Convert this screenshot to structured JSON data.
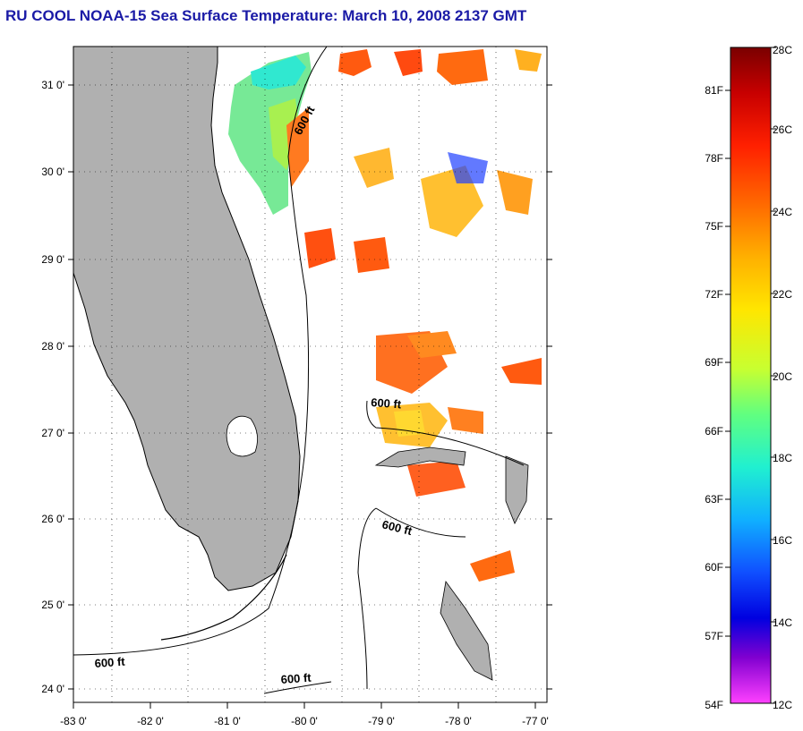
{
  "title": "RU COOL  NOAA-15  Sea Surface Temperature:  March 10, 2008 2137 GMT",
  "map": {
    "lon_ticks": [
      "-83 0'",
      "-82 0'",
      "-81 0'",
      "-80 0'",
      "-79 0'",
      "-78 0'",
      "-77 0'"
    ],
    "lat_ticks": [
      "31 0'",
      "30 0'",
      "29 0'",
      "28 0'",
      "27 0'",
      "26 0'",
      "25 0'",
      "24 0'"
    ],
    "contour_labels": [
      "600 ft",
      "600 ft",
      "600 ft",
      "600 ft",
      "600 ft"
    ],
    "colors": {
      "land": "#b0b0b0",
      "frame": "#000000"
    }
  },
  "colorbar": {
    "fahrenheit_labels": [
      "81F",
      "78F",
      "75F",
      "72F",
      "69F",
      "66F",
      "63F",
      "60F",
      "57F",
      "54F"
    ],
    "celsius_labels": [
      "28C",
      "26C",
      "24C",
      "22C",
      "20C",
      "18C",
      "16C",
      "14C",
      "12C"
    ],
    "gradient_colors": [
      "#7a0000",
      "#c80000",
      "#ff2000",
      "#ff6a00",
      "#ffb000",
      "#ffe600",
      "#c8ff30",
      "#60ff80",
      "#20f0d0",
      "#10b0ff",
      "#1050ff",
      "#0000e0",
      "#8000d0",
      "#ff40ff"
    ]
  }
}
